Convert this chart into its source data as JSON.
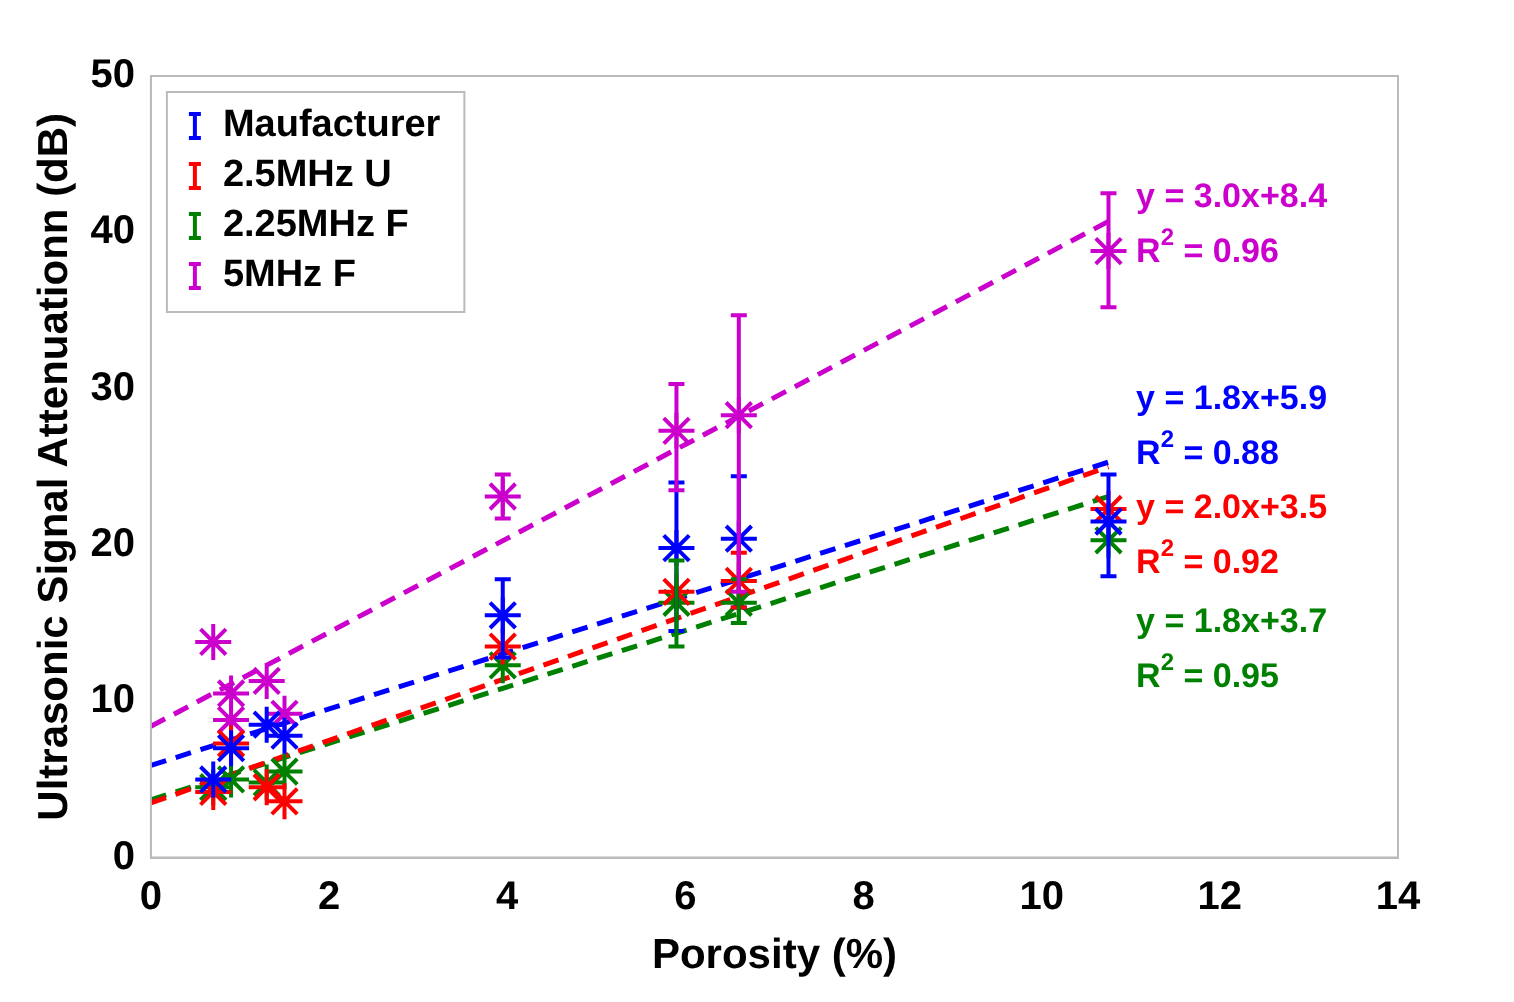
{
  "chart_data": {
    "type": "scatter",
    "xlabel": "Porosity (%)",
    "ylabel": "Ultrasonic Signal Attenuationn (dB)",
    "xlim": [
      0,
      14
    ],
    "xticks": [
      0,
      2,
      4,
      6,
      8,
      10,
      12,
      14
    ],
    "ylim": [
      0,
      50
    ],
    "yticks": [
      0,
      10,
      20,
      30,
      40,
      50
    ],
    "grid": false,
    "legend": "top left",
    "marker": "cross",
    "series": [
      {
        "name": "Maufacturer",
        "color": "#0000ff",
        "x": [
          0.7,
          0.9,
          1.3,
          1.5,
          3.95,
          5.9,
          6.6,
          10.75
        ],
        "values": [
          5,
          7,
          8.5,
          7.8,
          15.5,
          19.8,
          20.4,
          21.5
        ],
        "errors": [
          null,
          null,
          null,
          null,
          [
            12.8,
            17.8
          ],
          [
            14.5,
            24
          ],
          [
            16,
            24.4
          ],
          [
            18,
            24.5
          ]
        ]
      },
      {
        "name": "2.5MHz U",
        "color": "#ff0000",
        "x": [
          0.7,
          0.9,
          1.3,
          1.5,
          3.95,
          5.9,
          6.6,
          10.75
        ],
        "values": [
          4.2,
          7.3,
          4.5,
          3.6,
          13.5,
          17,
          17.7,
          22.3
        ],
        "errors": [
          null,
          null,
          null,
          null,
          null,
          null,
          [
            16,
            19.5
          ],
          null
        ]
      },
      {
        "name": "2.25MHz F",
        "color": "#008000",
        "x": [
          0.7,
          0.9,
          1.3,
          1.5,
          3.95,
          5.9,
          6.6,
          10.75
        ],
        "values": [
          4.5,
          5,
          4.8,
          5.5,
          12.3,
          16.3,
          16.3,
          20.3
        ],
        "errors": [
          null,
          null,
          null,
          null,
          null,
          [
            13.5,
            19
          ],
          [
            15,
            17.8
          ],
          null
        ]
      },
      {
        "name": "5MHz F",
        "color": "#cc00cc",
        "x": [
          0.7,
          0.9,
          0.9,
          1.3,
          1.5,
          3.95,
          5.9,
          6.6,
          10.75
        ],
        "values": [
          13.8,
          10.5,
          8.8,
          11.3,
          9.2,
          23.1,
          27.3,
          28.3,
          38.8
        ],
        "errors": [
          null,
          null,
          null,
          null,
          null,
          [
            21.7,
            24.5
          ],
          [
            23.5,
            30.3
          ],
          [
            17,
            34.7
          ],
          [
            35.2,
            42.5
          ]
        ]
      },
      {
        "type": "line",
        "line_style": "dashed",
        "marker": "none",
        "color": "#0000ff",
        "x": [
          0,
          10.75
        ],
        "values": [
          5.9,
          25.3
        ]
      },
      {
        "type": "line",
        "line_style": "dashed",
        "marker": "none",
        "color": "#ff0000",
        "x": [
          0,
          10.75
        ],
        "values": [
          3.5,
          25
        ]
      },
      {
        "type": "line",
        "line_style": "dashed",
        "marker": "none",
        "color": "#008000",
        "x": [
          0,
          10.75
        ],
        "values": [
          3.7,
          23.1
        ]
      },
      {
        "type": "line",
        "line_style": "dashed",
        "marker": "none",
        "color": "#cc00cc",
        "x": [
          0,
          10.75
        ],
        "values": [
          8.4,
          40.7
        ]
      }
    ],
    "annotations": [
      "y = 1.8x+5.9",
      "R$^{2}$ = 0.88",
      "y = 2.0x+3.5",
      "R$^{2}$ = 0.92",
      "y = 1.8x+3.7",
      "R$^{2}$ = 0.95",
      "y = 3.0x+8.4",
      "R$^{2}$ = 0.96"
    ]
  }
}
